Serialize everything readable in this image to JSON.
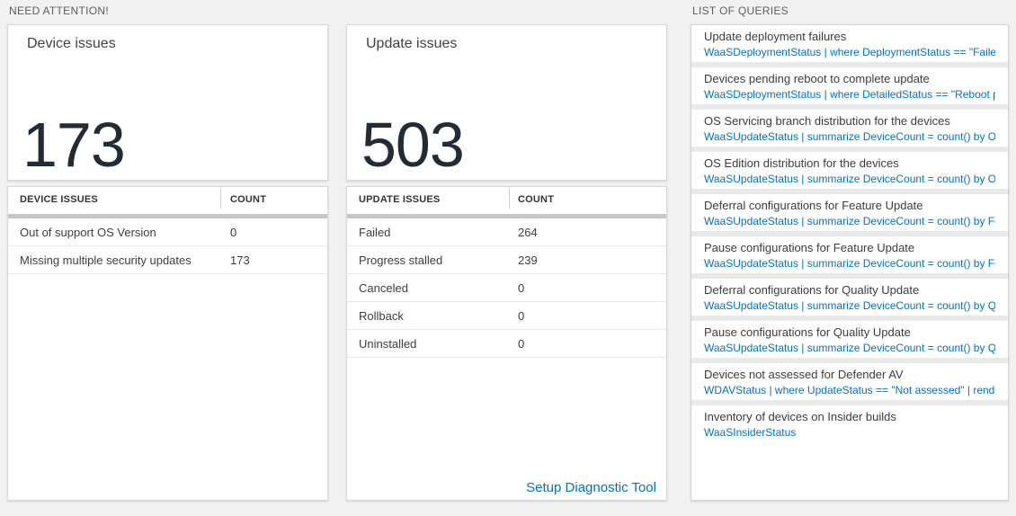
{
  "colors": {
    "background": "#f1f1f1",
    "panel": "#ffffff",
    "accent_blue": "#0072c6",
    "big_number": "#212c37",
    "header_bar": "#c3c7ca"
  },
  "section_headers": {
    "need_attention": "NEED ATTENTION!",
    "list_of_queries": "LIST OF QUERIES"
  },
  "tiles": [
    {
      "title": "Device issues",
      "value": "173"
    },
    {
      "title": "Update issues",
      "value": "503"
    }
  ],
  "tables": [
    {
      "columns": [
        "DEVICE ISSUES",
        "COUNT"
      ],
      "rows": [
        {
          "label": "Out of support OS Version",
          "count": "0"
        },
        {
          "label": "Missing multiple security updates",
          "count": "173"
        }
      ]
    },
    {
      "columns": [
        "UPDATE ISSUES",
        "COUNT"
      ],
      "rows": [
        {
          "label": "Failed",
          "count": "264"
        },
        {
          "label": "Progress stalled",
          "count": "239"
        },
        {
          "label": "Canceled",
          "count": "0"
        },
        {
          "label": "Rollback",
          "count": "0"
        },
        {
          "label": "Uninstalled",
          "count": "0"
        }
      ],
      "footer_link": "Setup Diagnostic Tool"
    }
  ],
  "queries": [
    {
      "title": "Update deployment failures",
      "query": "WaaSDeploymentStatus | where DeploymentStatus == \"Failed\" |..."
    },
    {
      "title": "Devices pending reboot to complete update",
      "query": "WaaSDeploymentStatus | where DetailedStatus == \"Reboot pend..."
    },
    {
      "title": "OS Servicing branch distribution for the devices",
      "query": "WaaSUpdateStatus | summarize DeviceCount = count() by OSSer..."
    },
    {
      "title": "OS Edition distribution for the devices",
      "query": "WaaSUpdateStatus | summarize DeviceCount = count() by OSEdit..."
    },
    {
      "title": "Deferral configurations for Feature Update",
      "query": "WaaSUpdateStatus | summarize DeviceCount = count() by Featur..."
    },
    {
      "title": "Pause configurations for Feature Update",
      "query": "WaaSUpdateStatus | summarize DeviceCount = count() by Featur..."
    },
    {
      "title": "Deferral configurations for Quality Update",
      "query": "WaaSUpdateStatus | summarize DeviceCount = count() by Qualit..."
    },
    {
      "title": "Pause configurations for Quality Update",
      "query": "WaaSUpdateStatus | summarize DeviceCount = count() by Qualit..."
    },
    {
      "title": "Devices not assessed for Defender AV",
      "query": "WDAVStatus | where UpdateStatus == \"Not assessed\" | render ta..."
    },
    {
      "title": "Inventory of devices on Insider builds",
      "query": "WaaSInsiderStatus"
    }
  ]
}
